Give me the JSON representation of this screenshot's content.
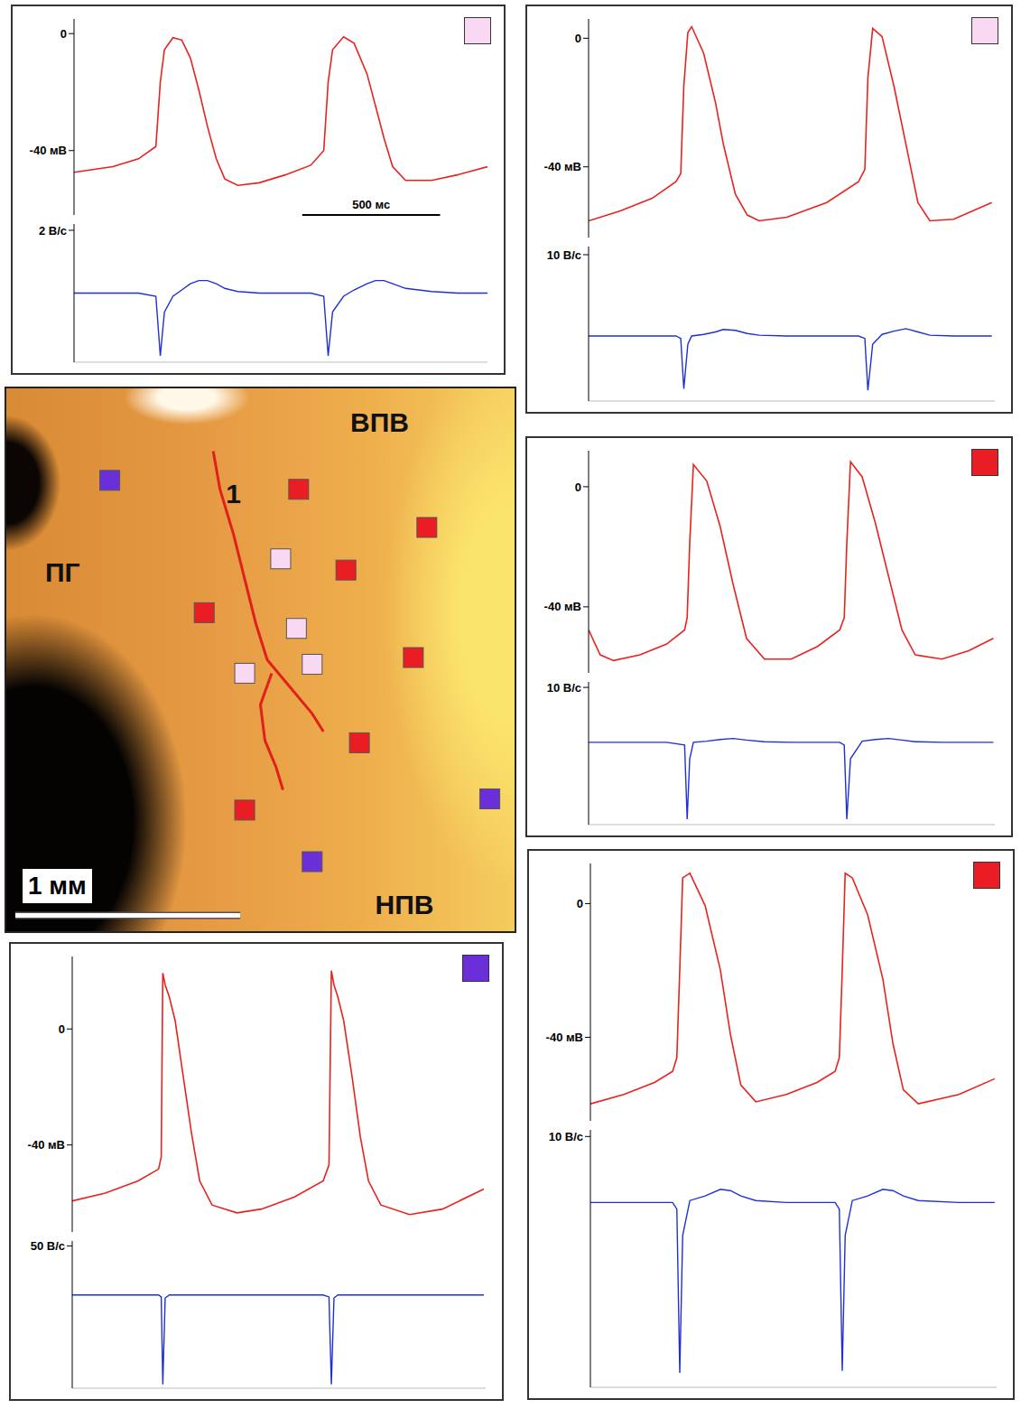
{
  "chart_data": [
    {
      "type": "line",
      "site_color": "#f9d8f3",
      "x": [
        0,
        141,
        234,
        297,
        313,
        328,
        359,
        391,
        422,
        453,
        484,
        516,
        547,
        594,
        672,
        766,
        859,
        906,
        922,
        938,
        978,
        1016,
        1063,
        1094,
        1125,
        1156,
        1203,
        1297,
        1391,
        1500
      ],
      "xlim": [
        0,
        1500
      ],
      "tick_labels": "y",
      "ylim": [
        -62,
        5
      ],
      "yticks": [
        {
          "value": -40,
          "label": "-40 мВ"
        },
        0
      ],
      "y2lim": [
        -2.2,
        2.2
      ],
      "y2ticks": [
        {
          "value": 2,
          "label": "2 В/с"
        }
      ],
      "scale_bar": {
        "x": 828,
        "length": 500,
        "label": "500 мс"
      },
      "series": [
        {
          "color": "#e8231f",
          "values": [
            -47.4,
            -45.5,
            -42.8,
            -38.6,
            -16.6,
            -5.5,
            -1.4,
            -2.2,
            -8.3,
            -19.3,
            -31.7,
            -42.8,
            -49.7,
            -51.9,
            -51.0,
            -48.3,
            -45.0,
            -40.0,
            -16.6,
            -5.5,
            -1.1,
            -3.3,
            -13.8,
            -24.8,
            -35.9,
            -45.5,
            -50.2,
            -50.2,
            -48.3,
            -45.5
          ]
        },
        {
          "color": "#1f2fd8",
          "axis": "y2",
          "values": [
            0,
            0,
            0,
            -0.1,
            -2.0,
            -0.6,
            -0.1,
            0.1,
            0.3,
            0.4,
            0.4,
            0.3,
            0.15,
            0.05,
            0,
            0,
            0,
            -0.1,
            -2.0,
            -0.6,
            -0.1,
            0.1,
            0.3,
            0.4,
            0.4,
            0.3,
            0.15,
            0.05,
            0,
            0
          ]
        }
      ]
    },
    {
      "type": "line",
      "site_color": "#f9d8f3",
      "x": [
        0,
        125,
        250,
        344,
        363,
        375,
        391,
        406,
        453,
        500,
        531,
        578,
        625,
        672,
        781,
        938,
        1063,
        1088,
        1100,
        1119,
        1156,
        1203,
        1250,
        1297,
        1344,
        1438,
        1588
      ],
      "xlim": [
        0,
        1600
      ],
      "tick_labels": "y",
      "ylim": [
        -62,
        6
      ],
      "yticks": [
        {
          "value": -40,
          "label": "-40 мВ"
        },
        0
      ],
      "y2lim": [
        -8,
        11
      ],
      "y2ticks": [
        {
          "value": 10,
          "label": "10 В/с"
        }
      ],
      "series": [
        {
          "color": "#e8231f",
          "values": [
            -56.8,
            -53.7,
            -49.8,
            -44.6,
            -42.1,
            -15.0,
            1.8,
            3.6,
            -4.6,
            -20.1,
            -33.0,
            -48.5,
            -55.0,
            -56.8,
            -55.7,
            -51.1,
            -44.6,
            -40.8,
            -12.4,
            3.1,
            0.5,
            -15.0,
            -33.0,
            -51.1,
            -56.8,
            -56.3,
            -51.1
          ]
        },
        {
          "color": "#1f2fd8",
          "axis": "y2",
          "values": [
            0,
            0,
            0,
            0,
            -0.3,
            -6.5,
            -1.0,
            0,
            0.2,
            0.5,
            0.8,
            0.7,
            0.3,
            0.1,
            0,
            0,
            0,
            -0.3,
            -6.7,
            -1.0,
            0.2,
            0.6,
            0.9,
            0.5,
            0.1,
            0,
            0
          ]
        }
      ]
    },
    {
      "type": "scatter",
      "xlim": [
        0,
        2.26
      ],
      "ylim": [
        0,
        2.42
      ],
      "tick_labels": false,
      "series": [
        {
          "type": "line",
          "color": "#e0201a",
          "x": [
            0.92,
            0.95,
            1.01,
            1.06,
            1.11,
            1.16,
            1.26,
            1.36,
            1.41
          ],
          "values": [
            2.14,
            1.97,
            1.77,
            1.57,
            1.37,
            1.21,
            1.09,
            0.97,
            0.89
          ]
        },
        {
          "type": "line",
          "color": "#e0201a",
          "x": [
            1.18,
            1.13,
            1.15,
            1.2,
            1.23
          ],
          "values": [
            1.15,
            1.01,
            0.85,
            0.73,
            0.63
          ]
        },
        {
          "color": "#6b2fd9",
          "marker": "square",
          "x": [
            0.46,
            2.15,
            1.36
          ],
          "values": [
            2.01,
            0.59,
            0.31
          ]
        },
        {
          "color": "#ea1c24",
          "marker": "square",
          "x": [
            1.3,
            1.87,
            1.51,
            0.88,
            1.81,
            1.57,
            1.06
          ],
          "values": [
            1.97,
            1.8,
            1.61,
            1.42,
            1.22,
            0.84,
            0.54
          ]
        },
        {
          "color": "#f9d8f3",
          "marker": "square",
          "x": [
            1.22,
            1.29,
            1.36,
            1.06
          ],
          "values": [
            1.66,
            1.35,
            1.19,
            1.15
          ]
        }
      ],
      "annotations": [
        {
          "text": "ВПВ",
          "x": 1.66,
          "y": 2.27
        },
        {
          "text": "ПГ",
          "x": 0.25,
          "y": 1.6
        },
        {
          "text": "НПВ",
          "x": 1.77,
          "y": 0.12
        },
        {
          "text": "1",
          "x": 1.01,
          "y": 1.95
        }
      ],
      "scale_bar": {
        "x": 0.04,
        "y": 0.07,
        "length": 1,
        "label": "1 мм"
      }
    },
    {
      "type": "line",
      "site_color": "#ea1c24",
      "x": [
        0,
        41,
        88,
        181,
        275,
        338,
        347,
        356,
        369,
        416,
        463,
        509,
        556,
        619,
        713,
        806,
        884,
        900,
        909,
        922,
        963,
        1009,
        1056,
        1103,
        1150,
        1244,
        1338,
        1425
      ],
      "xlim": [
        0,
        1430
      ],
      "tick_labels": "y",
      "ylim": [
        -62,
        12
      ],
      "yticks": [
        {
          "value": -40,
          "label": "-40 мВ"
        },
        0
      ],
      "y2lim": [
        -15,
        11
      ],
      "y2ticks": [
        {
          "value": 10,
          "label": "10 В/с"
        }
      ],
      "series": [
        {
          "color": "#e8231f",
          "values": [
            -47.7,
            -56.0,
            -57.9,
            -56.0,
            -52.4,
            -47.7,
            -43.6,
            -18.8,
            7.4,
            1.9,
            -13.2,
            -32.6,
            -50.5,
            -57.4,
            -57.4,
            -53.2,
            -47.7,
            -43.6,
            -18.8,
            8.3,
            3.3,
            -11.9,
            -29.8,
            -47.7,
            -56.0,
            -57.4,
            -54.6,
            -50.5
          ]
        },
        {
          "color": "#1f2fd8",
          "axis": "y2",
          "values": [
            0,
            0,
            0,
            0,
            0,
            -0.5,
            -14,
            -3,
            0,
            0.2,
            0.5,
            0.7,
            0.4,
            0.1,
            0,
            0,
            0,
            -0.5,
            -14,
            -3,
            0.2,
            0.5,
            0.7,
            0.4,
            0.1,
            0,
            0,
            0
          ]
        }
      ]
    },
    {
      "type": "line",
      "site_color": "#6b2fd9",
      "x": [
        0,
        125,
        250,
        328,
        338,
        344,
        353,
        369,
        391,
        422,
        453,
        484,
        531,
        625,
        719,
        844,
        953,
        975,
        984,
        994,
        1009,
        1031,
        1063,
        1094,
        1125,
        1172,
        1281,
        1406,
        1563
      ],
      "xlim": [
        0,
        1570
      ],
      "tick_labels": "y",
      "ylim": [
        -70,
        25
      ],
      "yticks": [
        {
          "value": -40,
          "label": "-40 мВ"
        },
        0
      ],
      "y2lim": [
        -95,
        55
      ],
      "y2ticks": [
        {
          "value": 50,
          "label": "50 В/с"
        }
      ],
      "series": [
        {
          "color": "#e8231f",
          "values": [
            -59.3,
            -56.6,
            -52.4,
            -48.3,
            -44.1,
            19.3,
            15.2,
            11.0,
            2.8,
            -16.6,
            -35.9,
            -52.4,
            -60.7,
            -63.4,
            -62.1,
            -57.9,
            -52.4,
            -46.9,
            20.1,
            15.2,
            11.0,
            2.8,
            -16.6,
            -37.2,
            -52.4,
            -60.7,
            -64.0,
            -62.1,
            -55.2
          ]
        },
        {
          "color": "#1f2fd8",
          "axis": "y2",
          "values": [
            0,
            0,
            0,
            0,
            -2,
            -91,
            -3,
            0,
            0,
            0,
            0,
            0,
            0,
            0,
            0,
            0,
            0,
            -2,
            -91,
            -3,
            0,
            0,
            0,
            0,
            0,
            0,
            0,
            0,
            0
          ]
        }
      ]
    },
    {
      "type": "line",
      "site_color": "#ea1c24",
      "x": [
        0,
        103,
        197,
        253,
        266,
        275,
        284,
        306,
        353,
        400,
        431,
        463,
        509,
        603,
        697,
        753,
        766,
        775,
        784,
        806,
        853,
        900,
        931,
        963,
        1009,
        1134,
        1244
      ],
      "xlim": [
        0,
        1250
      ],
      "tick_labels": "y",
      "ylim": [
        -65,
        12
      ],
      "yticks": [
        {
          "value": -40,
          "label": "-40 мВ"
        },
        0
      ],
      "y2lim": [
        -28,
        11
      ],
      "y2ticks": [
        {
          "value": 10,
          "label": "10 В/с"
        }
      ],
      "series": [
        {
          "color": "#e8231f",
          "values": [
            -59.9,
            -57.1,
            -53.5,
            -50.2,
            -46.1,
            -19.9,
            7.7,
            9.1,
            -0.6,
            -19.9,
            -39.2,
            -54.3,
            -59.3,
            -57.1,
            -53.5,
            -50.2,
            -46.1,
            -19.9,
            9.1,
            7.7,
            -3.3,
            -22.6,
            -41.9,
            -55.7,
            -59.9,
            -57.1,
            -52.4
          ]
        },
        {
          "color": "#1f2fd8",
          "axis": "y2",
          "values": [
            0,
            0,
            0,
            0,
            -1,
            -25.8,
            -5,
            0.3,
            1,
            2,
            1.8,
            1,
            0.3,
            0,
            0,
            0,
            -1,
            -25.5,
            -5,
            0.3,
            1,
            2,
            1.8,
            1,
            0.3,
            0,
            0
          ]
        }
      ]
    }
  ]
}
